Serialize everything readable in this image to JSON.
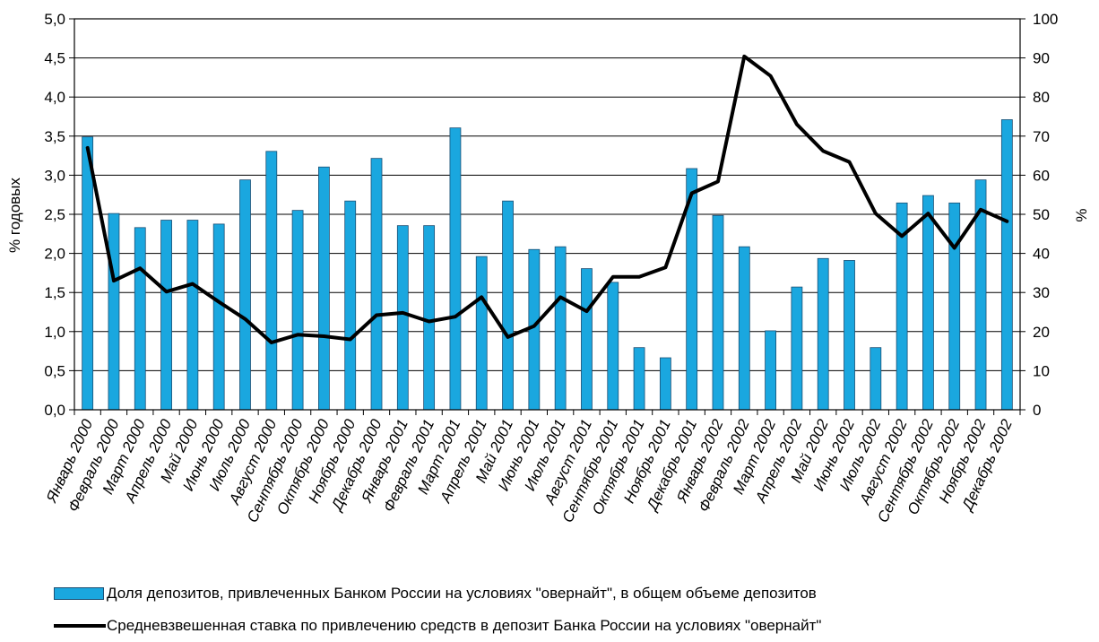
{
  "chart_data": {
    "type": "bar",
    "categories": [
      "Январь 2000",
      "Февраль 2000",
      "Март 2000",
      "Апрель 2000",
      "Май 2000",
      "Июнь 2000",
      "Июль 2000",
      "Август 2000",
      "Сентябрь 2000",
      "Октябрь 2000",
      "Ноябрь 2000",
      "Декабрь 2000",
      "Январь 2001",
      "Февраль 2001",
      "Март 2001",
      "Апрель 2001",
      "Май 2001",
      "Июнь 2001",
      "Июль 2001",
      "Август 2001",
      "Сентябрь 2001",
      "Октябрь 2001",
      "Ноябрь 2001",
      "Декабрь 2001",
      "Январь 2002",
      "Февраль 2002",
      "Март 2002",
      "Апрель 2002",
      "Май 2002",
      "Июнь 2002",
      "Июль 2002",
      "Август 2002",
      "Сентябрь 2002",
      "Октябрь 2002",
      "Ноябрь 2002",
      "Декабрь 2002"
    ],
    "series": [
      {
        "name": "Доля депозитов, привлеченных Банком России на условиях \"овернайт\", в общем объеме депозитов",
        "type": "bar",
        "axis": "right",
        "color": "#1aa7df",
        "values": [
          69.8,
          50.2,
          46.6,
          48.5,
          48.5,
          47.5,
          58.8,
          66.1,
          51.0,
          62.1,
          53.4,
          64.3,
          47.1,
          47.1,
          72.1,
          39.2,
          53.4,
          41.0,
          41.7,
          36.1,
          32.6,
          15.9,
          13.3,
          61.7,
          49.7,
          41.7,
          20.2,
          31.4,
          38.7,
          38.2,
          15.9,
          52.9,
          54.8,
          52.9,
          58.8,
          74.2
        ]
      },
      {
        "name": "Средневзвешенная ставка по привлечению средств в депозит Банка России  на условиях \"овернайт\"",
        "type": "line",
        "axis": "left",
        "color": "#000000",
        "values": [
          3.35,
          1.65,
          1.81,
          1.51,
          1.61,
          1.38,
          1.16,
          0.86,
          0.96,
          0.94,
          0.9,
          1.21,
          1.24,
          1.13,
          1.19,
          1.44,
          0.93,
          1.07,
          1.44,
          1.26,
          1.7,
          1.7,
          1.82,
          2.77,
          2.92,
          4.52,
          4.27,
          3.65,
          3.31,
          3.17,
          2.51,
          2.22,
          2.51,
          2.07,
          2.56,
          2.41
        ]
      }
    ],
    "yaxis_left": {
      "label": "% годовых",
      "range": [
        0,
        5
      ],
      "ticks": [
        "0,0",
        "0,5",
        "1,0",
        "1,5",
        "2,0",
        "2,5",
        "3,0",
        "3,5",
        "4,0",
        "4,5",
        "5,0"
      ]
    },
    "yaxis_right": {
      "label": "%",
      "range": [
        0,
        100
      ],
      "ticks": [
        "0",
        "10",
        "20",
        "30",
        "40",
        "50",
        "60",
        "70",
        "80",
        "90",
        "100"
      ]
    },
    "grid": true,
    "legend_position": "bottom"
  }
}
